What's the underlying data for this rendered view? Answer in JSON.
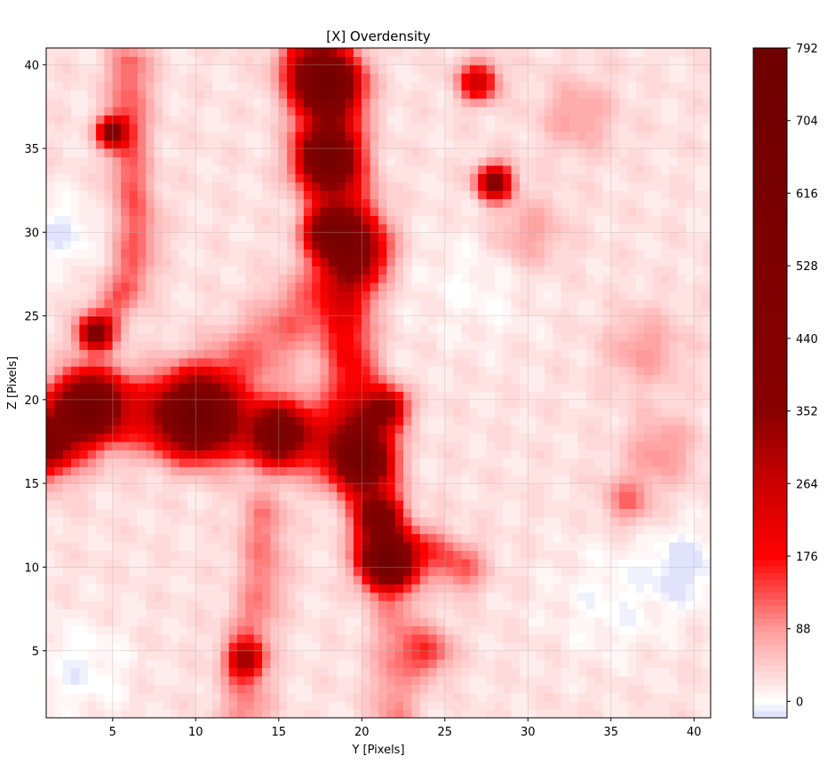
{
  "chart_data": {
    "type": "heatmap",
    "subtype": "filled-contour",
    "title": "[X] Overdensity",
    "xlabel": "Y [Pixels]",
    "ylabel": "Z [Pixels]",
    "xlim": [
      1,
      41
    ],
    "ylim": [
      1,
      41
    ],
    "x_ticks": [
      5,
      10,
      15,
      20,
      25,
      30,
      35,
      40
    ],
    "y_ticks": [
      5,
      10,
      15,
      20,
      25,
      30,
      35,
      40
    ],
    "grid": true,
    "colorbar": {
      "min": -20,
      "max": 792,
      "ticks": [
        0,
        88,
        176,
        264,
        352,
        440,
        528,
        616,
        704,
        792
      ],
      "colormap": [
        {
          "value": -20,
          "color": "#d8dcfa"
        },
        {
          "value": 0,
          "color": "#ffffff"
        },
        {
          "value": 88,
          "color": "#ff9a9a"
        },
        {
          "value": 176,
          "color": "#ff0000"
        },
        {
          "value": 264,
          "color": "#cc0000"
        },
        {
          "value": 352,
          "color": "#880000"
        },
        {
          "value": 792,
          "color": "#6e0000"
        }
      ]
    },
    "background_level": 25,
    "features": [
      {
        "kind": "filament",
        "points": [
          [
            1,
            17.5
          ],
          [
            4,
            19.5
          ],
          [
            10,
            19
          ],
          [
            15,
            18
          ],
          [
            19,
            17.5
          ]
        ],
        "width": 1.6,
        "amplitude": 170
      },
      {
        "kind": "filament",
        "points": [
          [
            17,
            40
          ],
          [
            18,
            37
          ],
          [
            18,
            34
          ],
          [
            19,
            31
          ],
          [
            19.5,
            29
          ]
        ],
        "width": 1.3,
        "amplitude": 210
      },
      {
        "kind": "filament",
        "points": [
          [
            19.5,
            29
          ],
          [
            19,
            25
          ],
          [
            19.5,
            21
          ],
          [
            20,
            17
          ],
          [
            21,
            13
          ],
          [
            21.5,
            10.5
          ]
        ],
        "width": 1.1,
        "amplitude": 160
      },
      {
        "kind": "filament",
        "points": [
          [
            11,
            21
          ],
          [
            15,
            24
          ],
          [
            18,
            27
          ],
          [
            19.5,
            29
          ]
        ],
        "width": 1.4,
        "amplitude": 90
      },
      {
        "kind": "filament",
        "points": [
          [
            21.5,
            10.5
          ],
          [
            24,
            11
          ],
          [
            26,
            10
          ]
        ],
        "width": 1.0,
        "amplitude": 110
      },
      {
        "kind": "filament",
        "points": [
          [
            6,
            40
          ],
          [
            6,
            34
          ],
          [
            6.5,
            30
          ],
          [
            6,
            27
          ],
          [
            4,
            24
          ]
        ],
        "width": 0.9,
        "amplitude": 100
      },
      {
        "kind": "filament",
        "points": [
          [
            13,
            1
          ],
          [
            13,
            5
          ],
          [
            14,
            9
          ],
          [
            14,
            13
          ]
        ],
        "width": 1.0,
        "amplitude": 80
      },
      {
        "kind": "filament",
        "points": [
          [
            22,
            1
          ],
          [
            22,
            5
          ],
          [
            22,
            9
          ]
        ],
        "width": 1.0,
        "amplitude": 70
      },
      {
        "kind": "blob",
        "center": [
          3.5,
          19.6
        ],
        "radius": 1.2,
        "amplitude": 520
      },
      {
        "kind": "blob",
        "center": [
          10,
          19
        ],
        "radius": 1.4,
        "amplitude": 540
      },
      {
        "kind": "blob",
        "center": [
          15,
          18
        ],
        "radius": 1.0,
        "amplitude": 420
      },
      {
        "kind": "blob",
        "center": [
          1,
          17.5
        ],
        "radius": 1.0,
        "amplitude": 300
      },
      {
        "kind": "blob",
        "center": [
          18,
          39
        ],
        "radius": 1.2,
        "amplitude": 520
      },
      {
        "kind": "blob",
        "center": [
          18,
          34.5
        ],
        "radius": 1.1,
        "amplitude": 460
      },
      {
        "kind": "blob",
        "center": [
          18,
          30
        ],
        "radius": 0.9,
        "amplitude": 380
      },
      {
        "kind": "blob",
        "center": [
          20,
          16.5
        ],
        "radius": 1.1,
        "amplitude": 420
      },
      {
        "kind": "blob",
        "center": [
          21,
          13
        ],
        "radius": 0.8,
        "amplitude": 350
      },
      {
        "kind": "blob",
        "center": [
          21.5,
          10.5
        ],
        "radius": 1.0,
        "amplitude": 430
      },
      {
        "kind": "blob",
        "center": [
          21.5,
          19.5
        ],
        "radius": 0.8,
        "amplitude": 320
      },
      {
        "kind": "blob",
        "center": [
          28,
          33
        ],
        "radius": 0.7,
        "amplitude": 360
      },
      {
        "kind": "blob",
        "center": [
          4,
          24
        ],
        "radius": 0.6,
        "amplitude": 350
      },
      {
        "kind": "blob",
        "center": [
          5,
          36
        ],
        "radius": 0.6,
        "amplitude": 340
      },
      {
        "kind": "blob",
        "center": [
          27,
          39
        ],
        "radius": 0.8,
        "amplitude": 230
      },
      {
        "kind": "blob",
        "center": [
          13,
          4.5
        ],
        "radius": 0.7,
        "amplitude": 240
      },
      {
        "kind": "blob",
        "center": [
          36,
          14
        ],
        "radius": 1.0,
        "amplitude": 90
      },
      {
        "kind": "blob",
        "center": [
          24,
          5
        ],
        "radius": 1.0,
        "amplitude": 120
      },
      {
        "kind": "blob",
        "center": [
          30,
          30
        ],
        "radius": 1.5,
        "amplitude": 60
      },
      {
        "kind": "blob",
        "center": [
          33,
          37
        ],
        "radius": 1.5,
        "amplitude": 60
      },
      {
        "kind": "blob",
        "center": [
          37,
          23
        ],
        "radius": 1.6,
        "amplitude": 60
      },
      {
        "kind": "blob",
        "center": [
          38,
          17
        ],
        "radius": 1.4,
        "amplitude": 70
      },
      {
        "kind": "blob",
        "center": [
          39.5,
          10
        ],
        "radius": 1.6,
        "amplitude": -45
      },
      {
        "kind": "blob",
        "center": [
          2,
          30
        ],
        "radius": 1.5,
        "amplitude": -35
      },
      {
        "kind": "blob",
        "center": [
          3,
          4
        ],
        "radius": 2.0,
        "amplitude": -30
      },
      {
        "kind": "blob",
        "center": [
          35,
          8
        ],
        "radius": 2.5,
        "amplitude": -25
      },
      {
        "kind": "blob",
        "center": [
          27,
          27
        ],
        "radius": 2.5,
        "amplitude": -20
      }
    ]
  }
}
